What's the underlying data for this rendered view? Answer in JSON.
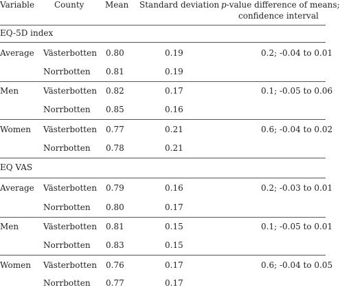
{
  "header": {
    "variable": "Variable",
    "county": "County",
    "mean": "Mean",
    "sd": "Standard deviation",
    "p_line1_italic": "p",
    "p_line1_rest": "-value difference of means;",
    "p_line2": "confidence interval"
  },
  "sections": [
    {
      "title": "EQ-5D index",
      "groups": [
        {
          "variable": "Average",
          "p": "0.2; -0.04 to 0.01",
          "rows": [
            {
              "county": "Västerbotten",
              "mean": "0.80",
              "sd": "0.19"
            },
            {
              "county": "Norrbotten",
              "mean": "0.81",
              "sd": "0.19"
            }
          ]
        },
        {
          "variable": "Men",
          "p": "0.1; -0.05 to 0.06",
          "rows": [
            {
              "county": "Västerbotten",
              "mean": "0.82",
              "sd": "0.17"
            },
            {
              "county": "Norrbotten",
              "mean": "0.85",
              "sd": "0.16"
            }
          ]
        },
        {
          "variable": "Women",
          "p": "0.6; -0.04 to 0.02",
          "rows": [
            {
              "county": "Västerbotten",
              "mean": "0.77",
              "sd": "0.21"
            },
            {
              "county": "Norrbotten",
              "mean": "0.78",
              "sd": "0.21"
            }
          ]
        }
      ]
    },
    {
      "title": "EQ VAS",
      "groups": [
        {
          "variable": "Average",
          "p": "0.2; -0.03 to 0.01",
          "rows": [
            {
              "county": "Västerbotten",
              "mean": "0.79",
              "sd": "0.16"
            },
            {
              "county": "Norrbotten",
              "mean": "0.80",
              "sd": "0.17"
            }
          ]
        },
        {
          "variable": "Men",
          "p": "0.1; -0.05 to 0.01",
          "rows": [
            {
              "county": "Västerbotten",
              "mean": "0.81",
              "sd": "0.15"
            },
            {
              "county": "Norrbotten",
              "mean": "0.83",
              "sd": "0.15"
            }
          ]
        },
        {
          "variable": "Women",
          "p": "0.6; -0.04 to 0.05",
          "rows": [
            {
              "county": "Västerbotten",
              "mean": "0.76",
              "sd": "0.17"
            },
            {
              "county": "Norrbotten",
              "mean": "0.77",
              "sd": "0.17"
            }
          ]
        }
      ]
    }
  ]
}
